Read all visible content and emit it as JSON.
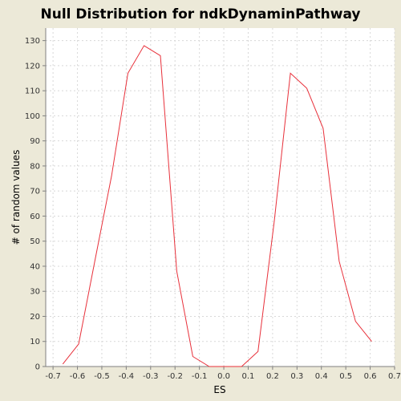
{
  "chart_data": {
    "type": "line",
    "title": "Null Distribution for ndkDynaminPathway",
    "xlabel": "ES",
    "ylabel": "# of random values",
    "xlim": [
      -0.73,
      0.7
    ],
    "ylim": [
      0,
      135
    ],
    "xticks": [
      -0.7,
      -0.6,
      -0.5,
      -0.4,
      -0.3,
      -0.2,
      -0.1,
      0.0,
      0.1,
      0.2,
      0.3,
      0.4,
      0.5,
      0.6,
      0.7
    ],
    "xtick_labels": [
      "-0.7",
      "-0.6",
      "-0.5",
      "-0.4",
      "-0.3",
      "-0.2",
      "-0.1",
      "0.0",
      "0.1",
      "0.2",
      "0.3",
      "0.4",
      "0.5",
      "0.6",
      "0.7"
    ],
    "yticks": [
      0,
      10,
      20,
      30,
      40,
      50,
      60,
      70,
      80,
      90,
      100,
      110,
      120,
      130
    ],
    "ytick_labels": [
      "0",
      "10",
      "20",
      "30",
      "40",
      "50",
      "60",
      "70",
      "80",
      "90",
      "100",
      "110",
      "120",
      "130"
    ],
    "grid": true,
    "series": [
      {
        "color": "#E8303A",
        "x": [
          -0.66,
          -0.595,
          -0.527,
          -0.46,
          -0.393,
          -0.327,
          -0.26,
          -0.193,
          -0.127,
          -0.06,
          0.007,
          0.073,
          0.14,
          0.207,
          0.273,
          0.34,
          0.407,
          0.473,
          0.54,
          0.606
        ],
        "y": [
          1,
          9,
          43,
          76,
          117,
          128,
          124,
          38,
          4,
          0,
          0,
          0,
          6,
          58,
          117,
          111,
          95,
          42,
          18,
          10
        ]
      }
    ]
  },
  "colors": {
    "background": "#ECE9D8",
    "plot_background": "#FFFFFF",
    "grid": "#D8D8D8",
    "axis": "#808080"
  }
}
